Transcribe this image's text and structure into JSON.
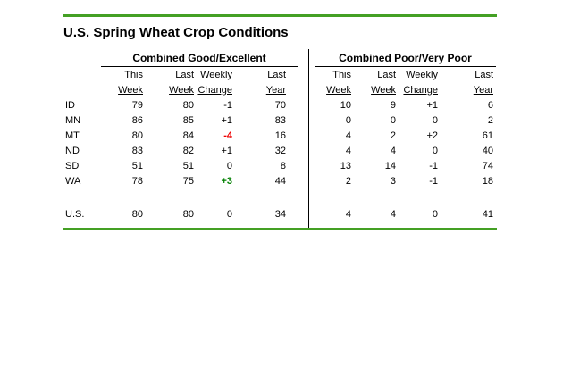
{
  "title": "U.S. Spring Wheat Crop Conditions",
  "colors": {
    "rule_green": "#44A024",
    "negative_change_red": "#EE0000",
    "positive_change_green": "#008000",
    "text": "#000000",
    "background": "#FFFFFF"
  },
  "table": {
    "sections": [
      {
        "header": "Combined Good/Excellent",
        "columns": [
          {
            "line1": "This",
            "line2": "Week"
          },
          {
            "line1": "Last",
            "line2": "Week"
          },
          {
            "line1": "Weekly",
            "line2": "Change"
          },
          {
            "line1": "Last",
            "line2": "Year"
          }
        ]
      },
      {
        "header": "Combined Poor/Very Poor",
        "columns": [
          {
            "line1": "This",
            "line2": "Week"
          },
          {
            "line1": "Last",
            "line2": "Week"
          },
          {
            "line1": "Weekly",
            "line2": "Change"
          },
          {
            "line1": "Last",
            "line2": "Year"
          }
        ]
      }
    ],
    "rows": [
      {
        "label": "ID",
        "ge": [
          {
            "v": "79"
          },
          {
            "v": "80"
          },
          {
            "v": "-1"
          },
          {
            "v": "70"
          }
        ],
        "pp": [
          {
            "v": "10"
          },
          {
            "v": "9"
          },
          {
            "v": "+1"
          },
          {
            "v": "6"
          }
        ]
      },
      {
        "label": "MN",
        "ge": [
          {
            "v": "86"
          },
          {
            "v": "85"
          },
          {
            "v": "+1"
          },
          {
            "v": "83"
          }
        ],
        "pp": [
          {
            "v": "0"
          },
          {
            "v": "0"
          },
          {
            "v": "0"
          },
          {
            "v": "2"
          }
        ]
      },
      {
        "label": "MT",
        "ge": [
          {
            "v": "80"
          },
          {
            "v": "84"
          },
          {
            "v": "-4",
            "style": "neg"
          },
          {
            "v": "16"
          }
        ],
        "pp": [
          {
            "v": "4"
          },
          {
            "v": "2"
          },
          {
            "v": "+2"
          },
          {
            "v": "61"
          }
        ]
      },
      {
        "label": "ND",
        "ge": [
          {
            "v": "83"
          },
          {
            "v": "82"
          },
          {
            "v": "+1"
          },
          {
            "v": "32"
          }
        ],
        "pp": [
          {
            "v": "4"
          },
          {
            "v": "4"
          },
          {
            "v": "0"
          },
          {
            "v": "40"
          }
        ]
      },
      {
        "label": "SD",
        "ge": [
          {
            "v": "51"
          },
          {
            "v": "51"
          },
          {
            "v": "0"
          },
          {
            "v": "8"
          }
        ],
        "pp": [
          {
            "v": "13"
          },
          {
            "v": "14"
          },
          {
            "v": "-1"
          },
          {
            "v": "74"
          }
        ]
      },
      {
        "label": "WA",
        "ge": [
          {
            "v": "78"
          },
          {
            "v": "75"
          },
          {
            "v": "+3",
            "style": "pos"
          },
          {
            "v": "44"
          }
        ],
        "pp": [
          {
            "v": "2"
          },
          {
            "v": "3"
          },
          {
            "v": "-1"
          },
          {
            "v": "18"
          }
        ]
      }
    ],
    "total": {
      "label": "U.S.",
      "ge": [
        {
          "v": "80"
        },
        {
          "v": "80"
        },
        {
          "v": "0"
        },
        {
          "v": "34"
        }
      ],
      "pp": [
        {
          "v": "4"
        },
        {
          "v": "4"
        },
        {
          "v": "0"
        },
        {
          "v": "41"
        }
      ]
    }
  },
  "chart_data": {
    "type": "table",
    "title": "U.S. Spring Wheat Crop Conditions",
    "column_groups": [
      "Combined Good/Excellent",
      "Combined Poor/Very Poor"
    ],
    "columns": [
      "This Week",
      "Last Week",
      "Weekly Change",
      "Last Year"
    ],
    "rows": [
      {
        "state": "ID",
        "good_excellent": {
          "this_week": 79,
          "last_week": 80,
          "weekly_change": -1,
          "last_year": 70
        },
        "poor_very_poor": {
          "this_week": 10,
          "last_week": 9,
          "weekly_change": 1,
          "last_year": 6
        }
      },
      {
        "state": "MN",
        "good_excellent": {
          "this_week": 86,
          "last_week": 85,
          "weekly_change": 1,
          "last_year": 83
        },
        "poor_very_poor": {
          "this_week": 0,
          "last_week": 0,
          "weekly_change": 0,
          "last_year": 2
        }
      },
      {
        "state": "MT",
        "good_excellent": {
          "this_week": 80,
          "last_week": 84,
          "weekly_change": -4,
          "last_year": 16
        },
        "poor_very_poor": {
          "this_week": 4,
          "last_week": 2,
          "weekly_change": 2,
          "last_year": 61
        }
      },
      {
        "state": "ND",
        "good_excellent": {
          "this_week": 83,
          "last_week": 82,
          "weekly_change": 1,
          "last_year": 32
        },
        "poor_very_poor": {
          "this_week": 4,
          "last_week": 4,
          "weekly_change": 0,
          "last_year": 40
        }
      },
      {
        "state": "SD",
        "good_excellent": {
          "this_week": 51,
          "last_week": 51,
          "weekly_change": 0,
          "last_year": 8
        },
        "poor_very_poor": {
          "this_week": 13,
          "last_week": 14,
          "weekly_change": -1,
          "last_year": 74
        }
      },
      {
        "state": "WA",
        "good_excellent": {
          "this_week": 78,
          "last_week": 75,
          "weekly_change": 3,
          "last_year": 44
        },
        "poor_very_poor": {
          "this_week": 2,
          "last_week": 3,
          "weekly_change": -1,
          "last_year": 18
        }
      },
      {
        "state": "U.S.",
        "good_excellent": {
          "this_week": 80,
          "last_week": 80,
          "weekly_change": 0,
          "last_year": 34
        },
        "poor_very_poor": {
          "this_week": 4,
          "last_week": 4,
          "weekly_change": 0,
          "last_year": 41
        }
      }
    ]
  }
}
